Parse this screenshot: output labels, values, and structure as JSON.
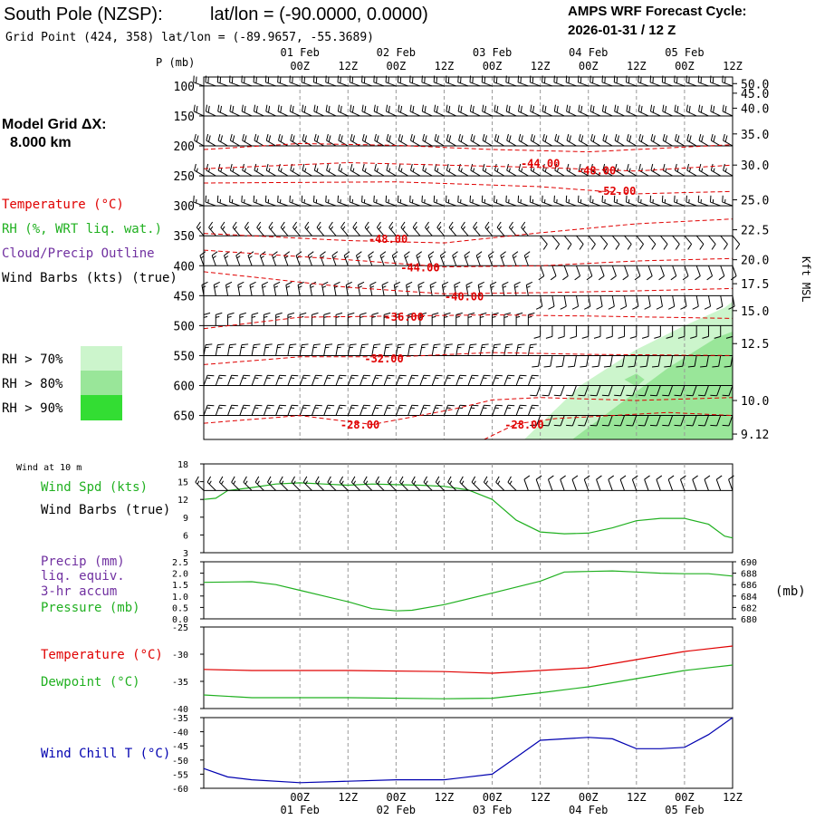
{
  "header": {
    "station": "South Pole (NZSP):",
    "latlon": "lat/lon = (-90.0000, 0.0000)",
    "grid_point": "Grid Point (424, 358) lat/lon = (-89.9657, -55.3689)",
    "cycle_label": "AMPS WRF Forecast Cycle:",
    "cycle_value": "2026-01-31 / 12  Z",
    "model_grid_label": "Model Grid ΔX:",
    "model_grid_value": "8.000 km"
  },
  "colors": {
    "temperature": "#e00000",
    "rh": "#20b020",
    "cloud": "#7030a0",
    "wind": "#000000",
    "windchill": "#0000b0",
    "rh70": "#ccf5cc",
    "rh80": "#99e699",
    "rh90": "#33dd33",
    "grid": "#999999"
  },
  "time_axis": {
    "top_dates": [
      "01 Feb",
      "02 Feb",
      "03 Feb",
      "04 Feb",
      "05 Feb"
    ],
    "bottom_dates": [
      "01 Feb",
      "02 Feb",
      "03 Feb",
      "04 Feb",
      "05 Feb"
    ],
    "ticks": [
      "00Z",
      "12Z",
      "00Z",
      "12Z",
      "00Z",
      "12Z",
      "00Z",
      "12Z",
      "00Z",
      "12Z"
    ],
    "tick_hours": [
      12,
      24,
      36,
      48,
      60,
      72,
      84,
      96,
      108,
      120
    ],
    "date_hours": [
      12,
      36,
      60,
      84,
      108
    ],
    "range_hours": [
      -12,
      120
    ]
  },
  "chart_data": [
    {
      "type": "cross-section",
      "panel": "upper",
      "ylabel": "P (mb)",
      "right_label": "Kft MSL",
      "pressure_levels": [
        100,
        150,
        200,
        250,
        300,
        350,
        400,
        450,
        500,
        550,
        600,
        650
      ],
      "pressure_range": [
        85,
        690
      ],
      "height_labels": [
        "50.0",
        "45.0",
        "40.0",
        "35.0",
        "30.0",
        "25.0",
        "22.5",
        "20.0",
        "17.5",
        "15.0",
        "12.5",
        "10.0",
        "9.12"
      ],
      "height_pressures": [
        96,
        112,
        137,
        180,
        232,
        290,
        340,
        390,
        430,
        475,
        530,
        625,
        681
      ],
      "legend": {
        "temperature": "Temperature (°C)",
        "rh": "RH (%, WRT liq. wat.)",
        "cloud": "Cloud/Precip Outline",
        "wind": "Wind Barbs (kts) (true)",
        "rh70": "RH > 70%",
        "rh80": "RH > 80%",
        "rh90": "RH > 90%"
      },
      "temperature_contours": [
        {
          "label": "-44.00",
          "hour": 72,
          "p": 228,
          "line": [
            [
              -12,
              206
            ],
            [
              12,
              196
            ],
            [
              36,
              199
            ],
            [
              60,
              206
            ],
            [
              84,
              210
            ],
            [
              120,
              198
            ]
          ]
        },
        {
          "label": "-48.00",
          "hour": 86,
          "p": 240,
          "line": [
            [
              -12,
              238
            ],
            [
              24,
              228
            ],
            [
              48,
              232
            ],
            [
              72,
              236
            ],
            [
              96,
              242
            ],
            [
              120,
              232
            ]
          ]
        },
        {
          "label": "-52.00",
          "hour": 91,
          "p": 274,
          "line": [
            [
              -12,
              262
            ],
            [
              36,
              260
            ],
            [
              72,
              268
            ],
            [
              96,
              280
            ],
            [
              120,
              276
            ]
          ]
        },
        {
          "label": "-48.00",
          "hour": 34,
          "p": 354,
          "line": [
            [
              -12,
              346
            ],
            [
              24,
              358
            ],
            [
              48,
              362
            ],
            [
              72,
              345
            ],
            [
              96,
              330
            ],
            [
              120,
              322
            ]
          ]
        },
        {
          "label": "-44.00",
          "hour": 42,
          "p": 402,
          "line": [
            [
              -12,
              374
            ],
            [
              24,
              390
            ],
            [
              48,
              402
            ],
            [
              72,
              400
            ],
            [
              96,
              392
            ],
            [
              120,
              388
            ]
          ]
        },
        {
          "label": "-40.00",
          "hour": 53,
          "p": 450,
          "line": [
            [
              -12,
              410
            ],
            [
              24,
              436
            ],
            [
              48,
              447
            ],
            [
              72,
              445
            ],
            [
              96,
              442
            ],
            [
              120,
              438
            ]
          ]
        },
        {
          "label": "-36.00",
          "hour": 38,
          "p": 484,
          "line": [
            [
              -12,
              505
            ],
            [
              12,
              486
            ],
            [
              36,
              484
            ],
            [
              60,
              482
            ],
            [
              84,
              484
            ],
            [
              120,
              488
            ]
          ]
        },
        {
          "label": "-32.00",
          "hour": 33,
          "p": 554,
          "line": [
            [
              -12,
              565
            ],
            [
              12,
              552
            ],
            [
              36,
              552
            ],
            [
              60,
              545
            ],
            [
              84,
              548
            ],
            [
              120,
              550
            ]
          ]
        },
        {
          "label": "-28.00",
          "hour": 27,
          "p": 664,
          "line": [
            [
              -12,
              663
            ],
            [
              12,
              650
            ],
            [
              30,
              665
            ],
            [
              50,
              640
            ],
            [
              60,
              624
            ],
            [
              72,
              620
            ],
            [
              96,
              625
            ],
            [
              120,
              620
            ]
          ]
        },
        {
          "label": "-28.00",
          "hour": 68,
          "p": 664,
          "line": [
            [
              58,
              690
            ],
            [
              66,
              664
            ],
            [
              76,
              655
            ],
            [
              90,
              650
            ],
            [
              104,
              645
            ],
            [
              120,
              650
            ]
          ]
        }
      ],
      "wind_rows": [
        {
          "p": 100,
          "dir": 290,
          "spd": 20
        },
        {
          "p": 150,
          "dir": 295,
          "spd": 20
        },
        {
          "p": 200,
          "dir": 300,
          "spd": 20
        },
        {
          "p": 250,
          "dir": 300,
          "spd": 15
        },
        {
          "p": 300,
          "dir": 290,
          "spd": 15
        },
        {
          "p": 350,
          "dir": 320,
          "spd": 15
        },
        {
          "p": 400,
          "dir": 340,
          "spd": 15
        },
        {
          "p": 450,
          "dir": 350,
          "spd": 15
        },
        {
          "p": 500,
          "dir": 0,
          "spd": 15
        },
        {
          "p": 550,
          "dir": 10,
          "spd": 15
        },
        {
          "p": 600,
          "dir": 20,
          "spd": 15
        },
        {
          "p": 650,
          "dir": 20,
          "spd": 15
        }
      ],
      "rh70_region": [
        [
          68,
          690
        ],
        [
          82,
          600
        ],
        [
          96,
          540
        ],
        [
          108,
          500
        ],
        [
          118,
          470
        ],
        [
          120,
          460
        ],
        [
          120,
          690
        ]
      ],
      "rh80_region": [
        [
          80,
          690
        ],
        [
          92,
          630
        ],
        [
          104,
          570
        ],
        [
          116,
          520
        ],
        [
          120,
          510
        ],
        [
          120,
          690
        ]
      ],
      "rh80_blob": [
        [
          93,
          590
        ],
        [
          96,
          580
        ],
        [
          98,
          590
        ],
        [
          96,
          602
        ]
      ]
    },
    {
      "type": "line",
      "panel": "wind10m",
      "title": "Wind at 10 m",
      "labels": [
        "Wind Spd (kts)",
        "Wind Barbs (true)"
      ],
      "ylim": [
        3,
        18
      ],
      "yticks": [
        3,
        6,
        9,
        12,
        15,
        18
      ],
      "series": [
        {
          "name": "Wind Spd (kts)",
          "points": [
            [
              -12,
              12
            ],
            [
              -9,
              12.2
            ],
            [
              -6,
              13.5
            ],
            [
              0,
              14
            ],
            [
              6,
              14.6
            ],
            [
              12,
              14.8
            ],
            [
              18,
              14.6
            ],
            [
              24,
              14.4
            ],
            [
              30,
              14.6
            ],
            [
              36,
              14.5
            ],
            [
              42,
              14.4
            ],
            [
              48,
              14.2
            ],
            [
              54,
              13.6
            ],
            [
              60,
              12
            ],
            [
              66,
              8.5
            ],
            [
              72,
              6.5
            ],
            [
              78,
              6.2
            ],
            [
              84,
              6.3
            ],
            [
              90,
              7.2
            ],
            [
              96,
              8.4
            ],
            [
              102,
              8.8
            ],
            [
              108,
              8.8
            ],
            [
              114,
              7.8
            ],
            [
              118,
              5.8
            ],
            [
              120,
              5.5
            ]
          ]
        }
      ],
      "barbs": {
        "hours_step": 3,
        "segments": [
          {
            "from": -12,
            "to": 66,
            "dir": 315,
            "spd": 15
          },
          {
            "from": 66,
            "to": 120,
            "dir": 340,
            "spd": 10
          }
        ]
      }
    },
    {
      "type": "line",
      "panel": "precip",
      "labels": [
        "Precip (mm)",
        "liq. equiv.",
        "3-hr accum",
        "Pressure (mb)"
      ],
      "ylim": [
        0,
        2.5
      ],
      "yticks": [
        "0.0",
        "0.5",
        "1.0",
        "1.5",
        "2.0",
        "2.5"
      ],
      "right_ylim": [
        680,
        690
      ],
      "right_ticks": [
        "680",
        "682",
        "684",
        "686",
        "688",
        "690"
      ],
      "right_label": "(mb)",
      "series": [
        {
          "name": "Pressure (mb)",
          "axis": "right",
          "points": [
            [
              -12,
              686.4
            ],
            [
              0,
              686.5
            ],
            [
              6,
              686
            ],
            [
              12,
              685
            ],
            [
              18,
              684
            ],
            [
              24,
              683
            ],
            [
              30,
              681.8
            ],
            [
              36,
              681.4
            ],
            [
              40,
              681.5
            ],
            [
              48,
              682.5
            ],
            [
              60,
              684.5
            ],
            [
              72,
              686.6
            ],
            [
              78,
              688.2
            ],
            [
              84,
              688.3
            ],
            [
              90,
              688.4
            ],
            [
              96,
              688.2
            ],
            [
              102,
              688
            ],
            [
              108,
              687.9
            ],
            [
              114,
              687.9
            ],
            [
              120,
              687.5
            ]
          ]
        }
      ]
    },
    {
      "type": "line",
      "panel": "temperature",
      "labels": [
        "Temperature (°C)",
        "Dewpoint (°C)"
      ],
      "ylim": [
        -40,
        -25
      ],
      "yticks": [
        "-25",
        "-30",
        "-35",
        "-40"
      ],
      "series": [
        {
          "name": "Temperature (°C)",
          "color": "temperature",
          "points": [
            [
              -12,
              -32.8
            ],
            [
              0,
              -33
            ],
            [
              24,
              -33
            ],
            [
              48,
              -33.2
            ],
            [
              60,
              -33.5
            ],
            [
              72,
              -33
            ],
            [
              84,
              -32.5
            ],
            [
              96,
              -31
            ],
            [
              108,
              -29.5
            ],
            [
              120,
              -28.5
            ]
          ]
        },
        {
          "name": "Dewpoint (°C)",
          "color": "rh",
          "points": [
            [
              -12,
              -37.5
            ],
            [
              0,
              -38
            ],
            [
              24,
              -38
            ],
            [
              48,
              -38.2
            ],
            [
              60,
              -38.1
            ],
            [
              72,
              -37.1
            ],
            [
              84,
              -36
            ],
            [
              96,
              -34.5
            ],
            [
              108,
              -33
            ],
            [
              120,
              -32
            ]
          ]
        }
      ]
    },
    {
      "type": "line",
      "panel": "windchill",
      "labels": [
        "Wind Chill T (°C)"
      ],
      "ylim": [
        -60,
        -35
      ],
      "yticks": [
        "-35",
        "-40",
        "-45",
        "-50",
        "-55",
        "-60"
      ],
      "series": [
        {
          "name": "Wind Chill T (°C)",
          "points": [
            [
              -12,
              -53
            ],
            [
              -6,
              -56
            ],
            [
              0,
              -57
            ],
            [
              12,
              -58
            ],
            [
              24,
              -57.5
            ],
            [
              36,
              -57
            ],
            [
              48,
              -57
            ],
            [
              60,
              -55
            ],
            [
              66,
              -49
            ],
            [
              72,
              -43
            ],
            [
              84,
              -42
            ],
            [
              90,
              -42.5
            ],
            [
              96,
              -46
            ],
            [
              102,
              -46
            ],
            [
              108,
              -45.5
            ],
            [
              114,
              -41
            ],
            [
              120,
              -35
            ]
          ]
        }
      ]
    }
  ]
}
